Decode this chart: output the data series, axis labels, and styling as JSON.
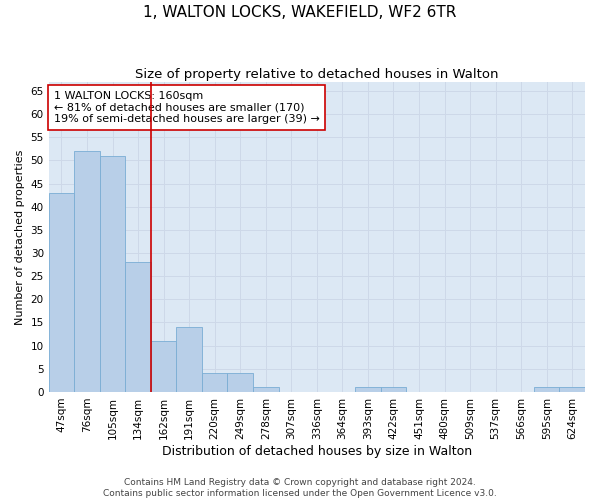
{
  "title": "1, WALTON LOCKS, WAKEFIELD, WF2 6TR",
  "subtitle": "Size of property relative to detached houses in Walton",
  "xlabel": "Distribution of detached houses by size in Walton",
  "ylabel": "Number of detached properties",
  "categories": [
    "47sqm",
    "76sqm",
    "105sqm",
    "134sqm",
    "162sqm",
    "191sqm",
    "220sqm",
    "249sqm",
    "278sqm",
    "307sqm",
    "336sqm",
    "364sqm",
    "393sqm",
    "422sqm",
    "451sqm",
    "480sqm",
    "509sqm",
    "537sqm",
    "566sqm",
    "595sqm",
    "624sqm"
  ],
  "bar_values": [
    43,
    52,
    51,
    28,
    11,
    14,
    4,
    4,
    1,
    0,
    0,
    0,
    1,
    1,
    0,
    0,
    0,
    0,
    0,
    1,
    1
  ],
  "bar_color": "#b8cfe8",
  "bar_edge_color": "#7aadd4",
  "vline_color": "#cc0000",
  "vline_pos": 3.5,
  "annotation_text": "1 WALTON LOCKS: 160sqm\n← 81% of detached houses are smaller (170)\n19% of semi-detached houses are larger (39) →",
  "annotation_box_color": "#cc0000",
  "ylim": [
    0,
    67
  ],
  "yticks": [
    0,
    5,
    10,
    15,
    20,
    25,
    30,
    35,
    40,
    45,
    50,
    55,
    60,
    65
  ],
  "grid_color": "#cdd8e8",
  "background_color": "#dce8f4",
  "footer": "Contains HM Land Registry data © Crown copyright and database right 2024.\nContains public sector information licensed under the Open Government Licence v3.0.",
  "title_fontsize": 11,
  "subtitle_fontsize": 9.5,
  "xlabel_fontsize": 9,
  "ylabel_fontsize": 8,
  "tick_fontsize": 7.5,
  "annotation_fontsize": 8,
  "footer_fontsize": 6.5
}
